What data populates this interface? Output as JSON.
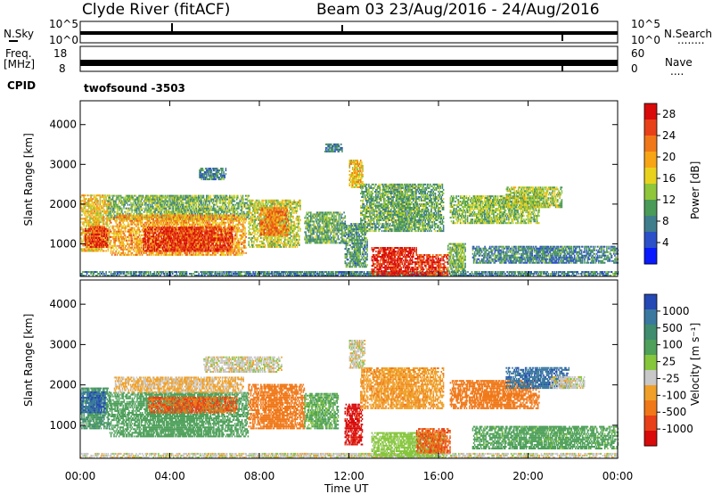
{
  "header": {
    "title": "Clyde River (fitACF)",
    "beam_info": "Beam 03 23/Aug/2016 - 24/Aug/2016"
  },
  "noise_panel": {
    "left_label": "N.Sky",
    "left_ticks": [
      "10^5",
      "10^0"
    ],
    "right_ticks": [
      "10^5",
      "10^0"
    ],
    "right_label": "N.Search",
    "right_dots": "........"
  },
  "freq_panel": {
    "left_label_1": "Freq.",
    "left_label_2": "[MHz]",
    "left_ticks": [
      "18",
      "8"
    ],
    "right_ticks": [
      "60",
      "0"
    ],
    "right_label": "Nave",
    "right_dots": "....",
    "cpid_label": "CPID",
    "cpid_value": "twofsound -3503"
  },
  "time_axis": {
    "label": "Time UT",
    "ticks": [
      "00:00",
      "04:00",
      "08:00",
      "12:00",
      "16:00",
      "20:00",
      "00:00"
    ]
  },
  "chart_data": [
    {
      "type": "heatmap",
      "title": "Power",
      "ylabel": "Slant Range [km]",
      "xlabel": "Time UT",
      "xlim": [
        0,
        24
      ],
      "ylim": [
        180,
        4600
      ],
      "yticks": [
        "1000",
        "2000",
        "3000",
        "4000"
      ],
      "colorbar": {
        "label": "Power [dB]",
        "ticks": [
          "4",
          "8",
          "12",
          "16",
          "20",
          "24",
          "28"
        ],
        "colors": [
          "#0a1aff",
          "#2c50c8",
          "#3f7d8c",
          "#4a9a58",
          "#8fc63a",
          "#e8d21e",
          "#f7a515",
          "#f07818",
          "#e84018",
          "#d80a0a"
        ]
      },
      "regions": [
        {
          "t0": 0.0,
          "t1": 24.0,
          "r0": 180,
          "r1": 280,
          "v": 8
        },
        {
          "t0": 0.0,
          "t1": 1.3,
          "r0": 800,
          "r1": 2200,
          "v": 18
        },
        {
          "t0": 0.2,
          "t1": 1.2,
          "r0": 900,
          "r1": 1400,
          "v": 26
        },
        {
          "t0": 1.2,
          "t1": 7.5,
          "r0": 1600,
          "r1": 2200,
          "v": 12
        },
        {
          "t0": 1.3,
          "t1": 7.4,
          "r0": 700,
          "r1": 1700,
          "v": 20
        },
        {
          "t0": 2.8,
          "t1": 6.8,
          "r0": 800,
          "r1": 1400,
          "v": 27
        },
        {
          "t0": 5.3,
          "t1": 6.5,
          "r0": 2600,
          "r1": 2900,
          "v": 8
        },
        {
          "t0": 7.5,
          "t1": 9.8,
          "r0": 900,
          "r1": 2100,
          "v": 15
        },
        {
          "t0": 8.0,
          "t1": 9.3,
          "r0": 1200,
          "r1": 1900,
          "v": 22
        },
        {
          "t0": 10.0,
          "t1": 11.8,
          "r0": 1000,
          "r1": 1800,
          "v": 11
        },
        {
          "t0": 10.9,
          "t1": 11.7,
          "r0": 3300,
          "r1": 3500,
          "v": 8
        },
        {
          "t0": 11.8,
          "t1": 12.8,
          "r0": 400,
          "r1": 1500,
          "v": 10
        },
        {
          "t0": 12.0,
          "t1": 12.6,
          "r0": 2400,
          "r1": 3100,
          "v": 18
        },
        {
          "t0": 12.5,
          "t1": 16.2,
          "r0": 1300,
          "r1": 2500,
          "v": 11
        },
        {
          "t0": 13.0,
          "t1": 15.0,
          "r0": 200,
          "r1": 900,
          "v": 28
        },
        {
          "t0": 15.0,
          "t1": 16.4,
          "r0": 200,
          "r1": 700,
          "v": 26
        },
        {
          "t0": 16.4,
          "t1": 17.2,
          "r0": 300,
          "r1": 1000,
          "v": 12
        },
        {
          "t0": 16.5,
          "t1": 20.5,
          "r0": 1500,
          "r1": 2200,
          "v": 13
        },
        {
          "t0": 17.5,
          "t1": 24.0,
          "r0": 500,
          "r1": 950,
          "v": 8
        },
        {
          "t0": 19.0,
          "t1": 21.5,
          "r0": 1900,
          "r1": 2400,
          "v": 14
        }
      ]
    },
    {
      "type": "heatmap",
      "title": "Velocity",
      "ylabel": "Slant Range [km]",
      "xlabel": "Time UT",
      "xlim": [
        0,
        24
      ],
      "ylim": [
        180,
        4600
      ],
      "yticks": [
        "1000",
        "2000",
        "3000",
        "4000"
      ],
      "colorbar": {
        "label": "Velocity [m s⁻¹]",
        "ticks": [
          "1000",
          "500",
          "100",
          "25",
          "-25",
          "-100",
          "-500",
          "-1000"
        ],
        "colors": [
          "#2448b4",
          "#3a78a0",
          "#3f8c6e",
          "#4ea05a",
          "#86c63c",
          "#c8c8c8",
          "#f0a028",
          "#f07818",
          "#e84018",
          "#d80a0a"
        ]
      },
      "regions": [
        {
          "t0": 0.0,
          "t1": 24.0,
          "r0": 180,
          "r1": 280,
          "v": 0
        },
        {
          "t0": 0.0,
          "t1": 1.3,
          "r0": 900,
          "r1": 1900,
          "v": 300
        },
        {
          "t0": 0.0,
          "t1": 1.1,
          "r0": 1300,
          "r1": 1800,
          "v": 900
        },
        {
          "t0": 1.3,
          "t1": 7.5,
          "r0": 700,
          "r1": 1800,
          "v": 200
        },
        {
          "t0": 1.5,
          "t1": 7.3,
          "r0": 1800,
          "r1": 2200,
          "v": -40
        },
        {
          "t0": 3.0,
          "t1": 7.0,
          "r0": 1300,
          "r1": 1700,
          "v": -300
        },
        {
          "t0": 5.5,
          "t1": 9.0,
          "r0": 2300,
          "r1": 2700,
          "v": 0
        },
        {
          "t0": 7.5,
          "t1": 10.0,
          "r0": 900,
          "r1": 2000,
          "v": -200
        },
        {
          "t0": 10.0,
          "t1": 11.5,
          "r0": 900,
          "r1": 1800,
          "v": 120
        },
        {
          "t0": 11.8,
          "t1": 12.6,
          "r0": 500,
          "r1": 1500,
          "v": -700
        },
        {
          "t0": 12.0,
          "t1": 12.7,
          "r0": 2400,
          "r1": 3100,
          "v": 0
        },
        {
          "t0": 12.5,
          "t1": 16.2,
          "r0": 1400,
          "r1": 2400,
          "v": -80
        },
        {
          "t0": 13.0,
          "t1": 16.2,
          "r0": 200,
          "r1": 800,
          "v": 60
        },
        {
          "t0": 15.0,
          "t1": 16.5,
          "r0": 300,
          "r1": 900,
          "v": -300
        },
        {
          "t0": 16.5,
          "t1": 20.5,
          "r0": 1400,
          "r1": 2100,
          "v": -200
        },
        {
          "t0": 17.5,
          "t1": 24.0,
          "r0": 400,
          "r1": 950,
          "v": 150
        },
        {
          "t0": 19.0,
          "t1": 21.8,
          "r0": 1900,
          "r1": 2400,
          "v": 800
        },
        {
          "t0": 21.0,
          "t1": 22.5,
          "r0": 1900,
          "r1": 2200,
          "v": 0
        }
      ]
    }
  ]
}
